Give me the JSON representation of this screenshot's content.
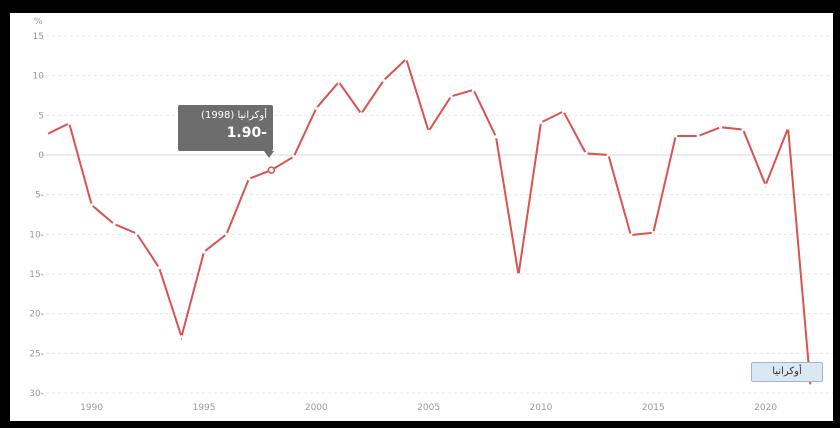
{
  "chart_data": {
    "type": "line",
    "unit": "%",
    "series": [
      {
        "name": "أوكرانيا",
        "x": [
          1988,
          1989,
          1990,
          1991,
          1992,
          1993,
          1994,
          1995,
          1996,
          1997,
          1998,
          1999,
          2000,
          2001,
          2002,
          2003,
          2004,
          2005,
          2006,
          2007,
          2008,
          2009,
          2010,
          2011,
          2012,
          2013,
          2014,
          2015,
          2016,
          2017,
          2018,
          2019,
          2020,
          2021,
          2022
        ],
        "values": [
          2.6,
          4.0,
          -6.3,
          -8.7,
          -9.9,
          -14.2,
          -22.9,
          -12.2,
          -10.0,
          -3.0,
          -1.9,
          -0.2,
          5.9,
          9.2,
          5.2,
          9.4,
          12.1,
          3.0,
          7.4,
          8.2,
          2.3,
          -15.1,
          4.1,
          5.5,
          0.2,
          0.0,
          -10.1,
          -9.8,
          2.4,
          2.4,
          3.5,
          3.2,
          -3.8,
          3.4,
          -29.1
        ],
        "color": "#d9534f"
      }
    ],
    "x_ticks": [
      "1990",
      "1995",
      "2000",
      "2005",
      "2010",
      "2015",
      "2020"
    ],
    "y_ticks": [
      "15",
      "10",
      "5",
      "0",
      "5-",
      "10-",
      "15-",
      "20-",
      "25-",
      "30-"
    ],
    "xlim": [
      1987.7,
      2023
    ],
    "ylim": [
      -30,
      15
    ],
    "grid": true,
    "legend": "none"
  },
  "tooltip": {
    "title": "أوكرانيا (1998)",
    "value": "1.90-",
    "year": 1998
  },
  "series_label": "أوكرانيا"
}
